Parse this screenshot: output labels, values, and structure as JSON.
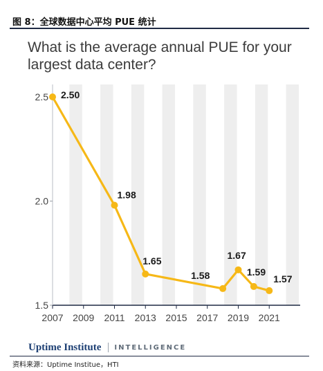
{
  "figure": {
    "title": "图 8：全球数据中心平均 PUE 统计",
    "source": "资料来源：Uptime Institue，HTI"
  },
  "card": {
    "question": "What is the average annual PUE for your largest data center?",
    "brand_logo": "Uptime Institute",
    "brand_tag": "INTELLIGENCE"
  },
  "colors": {
    "line": "#F6B817",
    "band": "#EEEEEE",
    "axis": "#1F2A44",
    "text": "#222222"
  },
  "chart_data": {
    "type": "line",
    "title": "What is the average annual PUE for your largest data center?",
    "xlabel": "",
    "ylabel": "",
    "x_ticks": [
      "2007",
      "2009",
      "2011",
      "2013",
      "2015",
      "2017",
      "2019",
      "2021"
    ],
    "y_ticks": [
      "1.5",
      "2.0",
      "2.5"
    ],
    "xlim": [
      2007,
      2023
    ],
    "ylim": [
      1.5,
      2.5
    ],
    "grid": "alternating vertical bands",
    "legend": "none",
    "series": [
      {
        "x": [
          2007,
          2011,
          2013,
          2018,
          2019,
          2020,
          2021
        ],
        "y": [
          2.5,
          1.98,
          1.65,
          1.58,
          1.67,
          1.59,
          1.57
        ],
        "labels": [
          "2.50",
          "1.98",
          "1.65",
          "1.58",
          "1.67",
          "1.59",
          "1.57"
        ]
      }
    ]
  }
}
